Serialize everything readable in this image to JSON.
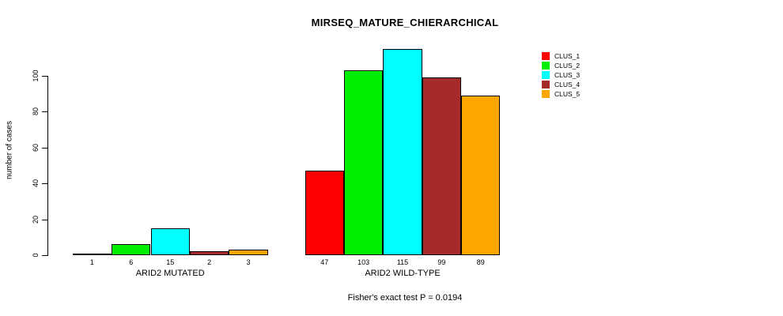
{
  "chart_data": {
    "type": "bar",
    "title": "MIRSEQ_MATURE_CHIERARCHICAL",
    "xlabel": "",
    "ylabel": "number of cases",
    "ylim": [
      0,
      115
    ],
    "yticks": [
      0,
      20,
      40,
      60,
      80,
      100
    ],
    "grid": false,
    "legend_position": "top-right",
    "bar_value_labels_shown": true,
    "categories": [
      "ARID2 MUTATED",
      "ARID2 WILD-TYPE"
    ],
    "groups": [
      {
        "label": "ARID2 MUTATED",
        "values": [
          1,
          6,
          15,
          2,
          3
        ]
      },
      {
        "label": "ARID2 WILD-TYPE",
        "values": [
          47,
          103,
          115,
          99,
          89
        ]
      }
    ],
    "series": [
      {
        "name": "CLUS_1",
        "color": "#ff0000"
      },
      {
        "name": "CLUS_2",
        "color": "#00ee00"
      },
      {
        "name": "CLUS_3",
        "color": "#00ffff"
      },
      {
        "name": "CLUS_4",
        "color": "#a52a2a"
      },
      {
        "name": "CLUS_5",
        "color": "#ffa500"
      }
    ],
    "annotation": "Fisher's exact test P = 0.0194"
  },
  "colors": {
    "axis": "#000000",
    "text": "#000000",
    "background": "#ffffff"
  }
}
